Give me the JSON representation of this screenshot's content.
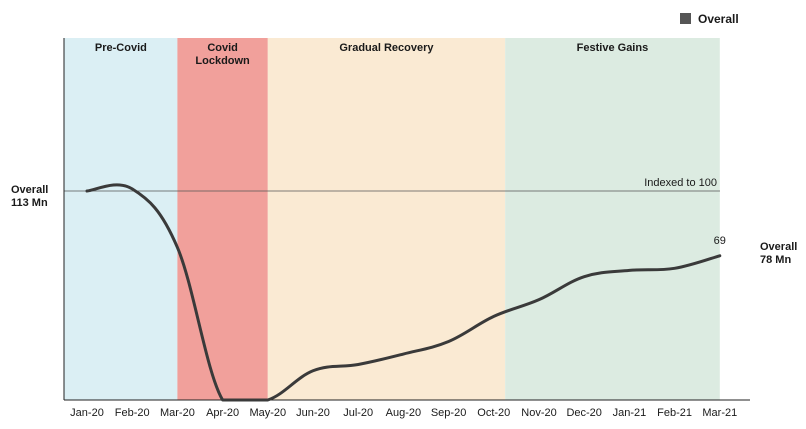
{
  "chart_data": {
    "type": "line",
    "title": "",
    "xlabel": "",
    "ylabel": "",
    "ylim": [
      0,
      100
    ],
    "grid": false,
    "legend": {
      "position": "top-right",
      "label": "Overall",
      "color": "#555555"
    },
    "categories": [
      "Jan-20",
      "Feb-20",
      "Mar-20",
      "Apr-20",
      "May-20",
      "Jun-20",
      "Jul-20",
      "Aug-20",
      "Sep-20",
      "Oct-20",
      "Nov-20",
      "Dec-20",
      "Jan-21",
      "Feb-21",
      "Mar-21"
    ],
    "series": [
      {
        "name": "Overall",
        "color": "#3a3a3a",
        "values": [
          100,
          101,
          73,
          0,
          0,
          14,
          17,
          22,
          28,
          40,
          48,
          59,
          62,
          63,
          69
        ]
      }
    ],
    "reference_line": {
      "value": 100,
      "label": "Indexed to 100"
    },
    "end_label": "69",
    "left_annotation": {
      "line1": "Overall",
      "line2": "113 Mn"
    },
    "right_annotation": {
      "line1": "Overall",
      "line2": "78 Mn"
    },
    "phases": [
      {
        "lines": [
          "Pre-Covid"
        ],
        "from": 0,
        "to": 2.5,
        "color": "#dbeff4"
      },
      {
        "lines": [
          "Covid",
          "Lockdown"
        ],
        "from": 2.5,
        "to": 4.5,
        "color": "#f1a09b"
      },
      {
        "lines": [
          "Gradual Recovery"
        ],
        "from": 4.5,
        "to": 9.75,
        "color": "#faead3"
      },
      {
        "lines": [
          "Festive Gains"
        ],
        "from": 9.75,
        "to": 14.5,
        "color": "#dcebe1"
      }
    ]
  }
}
